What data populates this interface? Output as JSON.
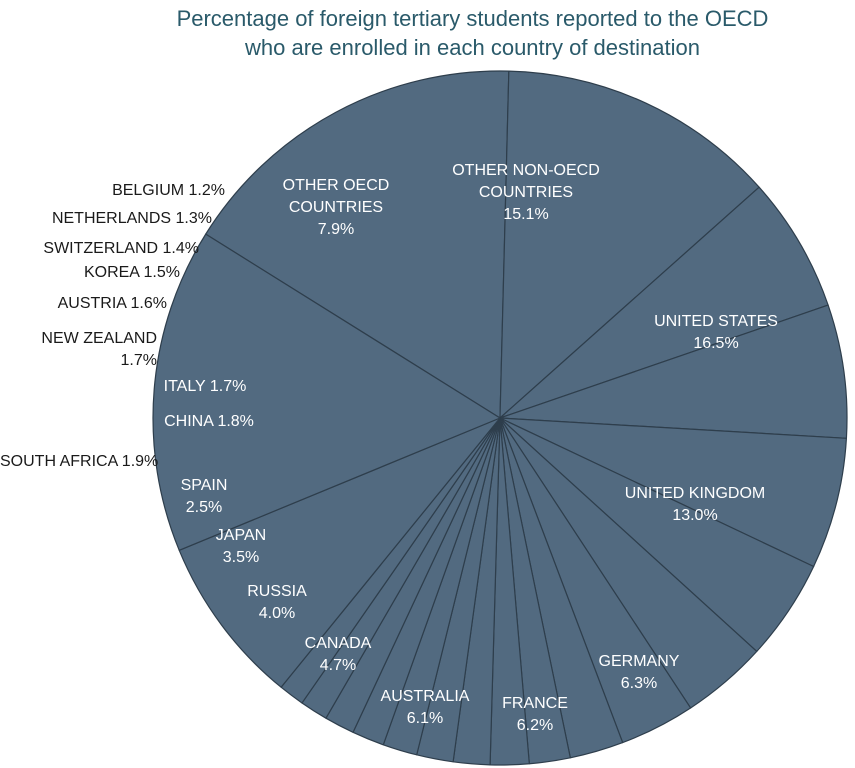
{
  "chart_data": {
    "type": "pie",
    "title_lines": [
      "Percentage of foreign tertiary students reported to the OECD",
      "who are enrolled in each country of destination"
    ],
    "colors": {
      "slice": "#526a80",
      "edge": "#2e3e4c",
      "inside_text": "#ffffff",
      "outside_text": "#1a1a1a",
      "title": "#2a5a6a"
    },
    "slices": [
      {
        "label_lines": [
          "UNITED STATES"
        ],
        "value": 16.5,
        "value_text": "16.5%",
        "placement": "inside"
      },
      {
        "label_lines": [
          "UNITED KINGDOM"
        ],
        "value": 13.0,
        "value_text": "13.0%",
        "placement": "inside"
      },
      {
        "label_lines": [
          "GERMANY"
        ],
        "value": 6.3,
        "value_text": "6.3%",
        "placement": "inside"
      },
      {
        "label_lines": [
          "FRANCE"
        ],
        "value": 6.2,
        "value_text": "6.2%",
        "placement": "inside"
      },
      {
        "label_lines": [
          "AUSTRALIA"
        ],
        "value": 6.1,
        "value_text": "6.1%",
        "placement": "inside"
      },
      {
        "label_lines": [
          "CANADA"
        ],
        "value": 4.7,
        "value_text": "4.7%",
        "placement": "inside"
      },
      {
        "label_lines": [
          "RUSSIA"
        ],
        "value": 4.0,
        "value_text": "4.0%",
        "placement": "inside"
      },
      {
        "label_lines": [
          "JAPAN"
        ],
        "value": 3.5,
        "value_text": "3.5%",
        "placement": "inside"
      },
      {
        "label_lines": [
          "SPAIN"
        ],
        "value": 2.5,
        "value_text": "2.5%",
        "placement": "inside"
      },
      {
        "label_lines": [
          "SOUTH AFRICA"
        ],
        "value": 1.9,
        "value_text": "1.9%",
        "placement": "outside"
      },
      {
        "label_lines": [
          "CHINA"
        ],
        "value": 1.8,
        "value_text": "1.8%",
        "placement": "inside"
      },
      {
        "label_lines": [
          "ITALY"
        ],
        "value": 1.7,
        "value_text": "1.7%",
        "placement": "inside"
      },
      {
        "label_lines": [
          "NEW ZEALAND"
        ],
        "value": 1.7,
        "value_text": "1.7%",
        "placement": "outside"
      },
      {
        "label_lines": [
          "AUSTRIA"
        ],
        "value": 1.6,
        "value_text": "1.6%",
        "placement": "outside"
      },
      {
        "label_lines": [
          "KOREA"
        ],
        "value": 1.5,
        "value_text": "1.5%",
        "placement": "outside"
      },
      {
        "label_lines": [
          "SWITZERLAND"
        ],
        "value": 1.4,
        "value_text": "1.4%",
        "placement": "outside"
      },
      {
        "label_lines": [
          "NETHERLANDS"
        ],
        "value": 1.3,
        "value_text": "1.3%",
        "placement": "outside"
      },
      {
        "label_lines": [
          "BELGIUM"
        ],
        "value": 1.2,
        "value_text": "1.2%",
        "placement": "outside"
      },
      {
        "label_lines": [
          "OTHER OECD",
          "COUNTRIES"
        ],
        "value": 7.9,
        "value_text": "7.9%",
        "placement": "inside"
      },
      {
        "label_lines": [
          "OTHER NON-OECD",
          "COUNTRIES"
        ],
        "value": 15.1,
        "value_text": "15.1%",
        "placement": "inside"
      }
    ]
  }
}
